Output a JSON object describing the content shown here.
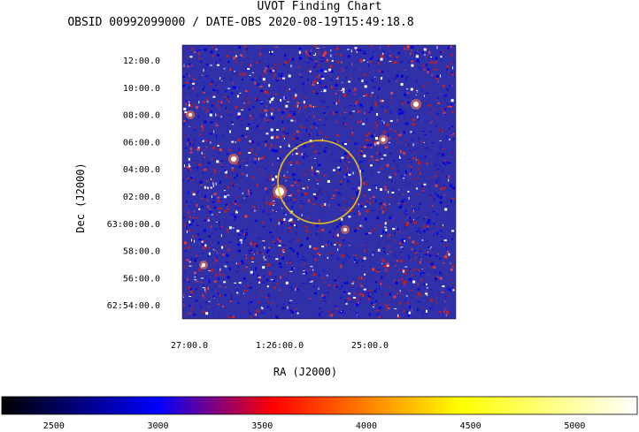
{
  "header": {
    "title": "UVOT Finding Chart",
    "subtitle": "OBSID 00992099000 / DATE-OBS 2020-08-19T15:49:18.8"
  },
  "chart_data": {
    "type": "heatmap",
    "title": "UVOT Finding Chart",
    "subtitle": "OBSID 00992099000 / DATE-OBS 2020-08-19T15:49:18.8",
    "xlabel": "RA (J2000)",
    "ylabel": "Dec (J2000)",
    "x_ticks": [
      {
        "label": "27:00.0",
        "ra_min": 27.0
      },
      {
        "label": "1:26:00.0",
        "ra_min": 26.0
      },
      {
        "label": "25:00.0",
        "ra_min": 25.0
      }
    ],
    "y_ticks": [
      {
        "label": "12:00.0",
        "dec_arcmin": 12
      },
      {
        "label": "10:00.0",
        "dec_arcmin": 10
      },
      {
        "label": "08:00.0",
        "dec_arcmin": 8
      },
      {
        "label": "06:00.0",
        "dec_arcmin": 6
      },
      {
        "label": "04:00.0",
        "dec_arcmin": 4
      },
      {
        "label": "02:00.0",
        "dec_arcmin": 2
      },
      {
        "label": "63:00:00.0",
        "dec_arcmin": 0
      },
      {
        "label": "58:00.0",
        "dec_arcmin": -2
      },
      {
        "label": "56:00.0",
        "dec_arcmin": -4
      },
      {
        "label": "62:54:00.0",
        "dec_arcmin": -6
      }
    ],
    "colorbar": {
      "ticks": [
        2500,
        3000,
        3500,
        4000,
        4500,
        5000
      ],
      "range": [
        2250,
        5300
      ],
      "colormap": [
        "#000000",
        "#0000ff",
        "#ff0000",
        "#ffff00",
        "#ffffff"
      ]
    },
    "marker": {
      "shape": "circle",
      "color": "#e8c020"
    },
    "colors": {
      "background": "#3030a8",
      "noise_low": "#0000e0",
      "noise_mid": "#c02020",
      "bright": "#ffffff"
    }
  }
}
